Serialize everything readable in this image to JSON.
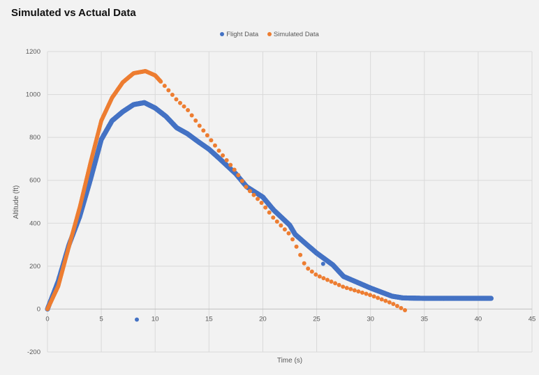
{
  "chart_data": {
    "type": "scatter",
    "title": "Simulated vs Actual Data",
    "xlabel": "Time (s)",
    "ylabel": "Altitude (ft)",
    "xlim": [
      0,
      45
    ],
    "ylim": [
      -200,
      1200
    ],
    "xticks": [
      0,
      5,
      10,
      15,
      20,
      25,
      30,
      35,
      40,
      45
    ],
    "yticks": [
      -200,
      0,
      200,
      400,
      600,
      800,
      1000,
      1200
    ],
    "grid": true,
    "legend_position": "top",
    "series": [
      {
        "name": "Flight Data",
        "color": "#4472c4",
        "points": [
          [
            0,
            0
          ],
          [
            1,
            130
          ],
          [
            2,
            300
          ],
          [
            3,
            432
          ],
          [
            4,
            605
          ],
          [
            5,
            790
          ],
          [
            6,
            878
          ],
          [
            7,
            920
          ],
          [
            8,
            953
          ],
          [
            9,
            962
          ],
          [
            10,
            937
          ],
          [
            11,
            898
          ],
          [
            12,
            845
          ],
          [
            13,
            817
          ],
          [
            14,
            780
          ],
          [
            15,
            745
          ],
          [
            16,
            700
          ],
          [
            17.5,
            630
          ],
          [
            18.5,
            570
          ],
          [
            20,
            522
          ],
          [
            21,
            462
          ],
          [
            22.5,
            391
          ],
          [
            23,
            348
          ],
          [
            24,
            304
          ],
          [
            25,
            261
          ],
          [
            26.5,
            206
          ],
          [
            27.5,
            152
          ],
          [
            30,
            98
          ],
          [
            32,
            60
          ],
          [
            33,
            52
          ],
          [
            35,
            50
          ],
          [
            38,
            50
          ],
          [
            41.2,
            50
          ]
        ],
        "outliers": [
          [
            8.3,
            -49
          ],
          [
            25.6,
            211
          ]
        ]
      },
      {
        "name": "Simulated Data",
        "color": "#ed7d31",
        "points": [
          [
            0,
            0
          ],
          [
            1,
            107
          ],
          [
            2,
            293
          ],
          [
            3,
            475
          ],
          [
            4,
            683
          ],
          [
            5,
            878
          ],
          [
            6,
            985
          ],
          [
            7,
            1057
          ],
          [
            8,
            1099
          ],
          [
            9.1,
            1109
          ],
          [
            10,
            1089
          ],
          [
            11,
            1034
          ],
          [
            12,
            975
          ],
          [
            13,
            930
          ],
          [
            14,
            862
          ],
          [
            15,
            800
          ],
          [
            16,
            733
          ],
          [
            17.5,
            641
          ],
          [
            18.5,
            565
          ],
          [
            20,
            489
          ],
          [
            21,
            424
          ],
          [
            22.5,
            348
          ],
          [
            23,
            304
          ],
          [
            24,
            196
          ],
          [
            25,
            158
          ],
          [
            26.5,
            125
          ],
          [
            27.5,
            103
          ],
          [
            30,
            65
          ],
          [
            32,
            27
          ],
          [
            33.2,
            -5
          ]
        ]
      }
    ]
  }
}
